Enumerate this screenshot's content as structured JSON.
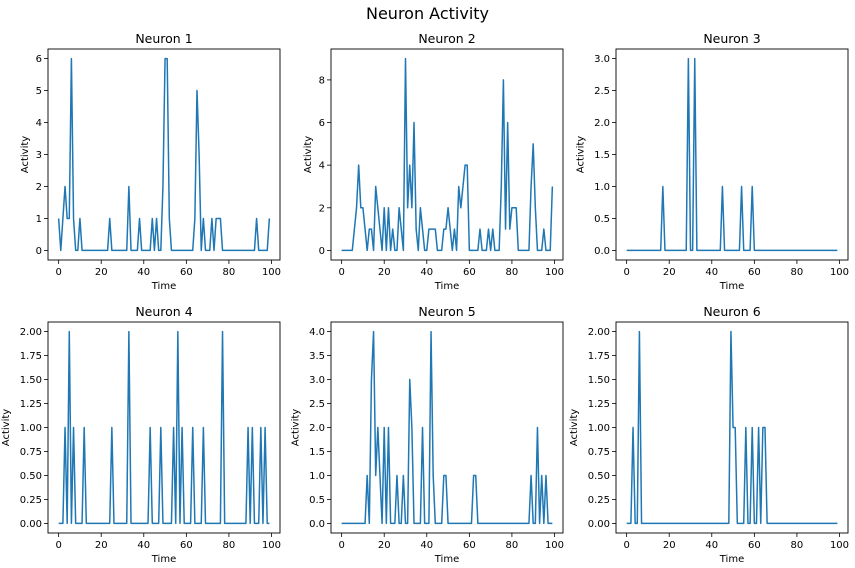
{
  "suptitle": "Neuron Activity",
  "colors": {
    "series": "#1f77b4"
  },
  "chart_data": [
    {
      "type": "line",
      "title": "Neuron 1",
      "xlabel": "Time",
      "ylabel": "Activity",
      "xlim": [
        -5,
        104
      ],
      "ylim": [
        -0.3,
        6.3
      ],
      "grid": false,
      "xticks": [
        0,
        20,
        40,
        60,
        80,
        100
      ],
      "yticks": [
        0,
        1,
        2,
        3,
        4,
        5,
        6
      ],
      "x": [
        0,
        1,
        2,
        3,
        4,
        5,
        6,
        7,
        8,
        9,
        10,
        11,
        12,
        13,
        14,
        15,
        16,
        17,
        18,
        19,
        20,
        21,
        22,
        23,
        24,
        25,
        26,
        27,
        28,
        29,
        30,
        31,
        32,
        33,
        34,
        35,
        36,
        37,
        38,
        39,
        40,
        41,
        42,
        43,
        44,
        45,
        46,
        47,
        48,
        49,
        50,
        51,
        52,
        53,
        54,
        55,
        56,
        57,
        58,
        59,
        60,
        61,
        62,
        63,
        64,
        65,
        66,
        67,
        68,
        69,
        70,
        71,
        72,
        73,
        74,
        75,
        76,
        77,
        78,
        79,
        80,
        81,
        82,
        83,
        84,
        85,
        86,
        87,
        88,
        89,
        90,
        91,
        92,
        93,
        94,
        95,
        96,
        97,
        98,
        99
      ],
      "y": [
        1,
        0,
        1,
        2,
        1,
        1,
        6,
        1,
        0,
        0,
        1,
        0,
        0,
        0,
        0,
        0,
        0,
        0,
        0,
        0,
        0,
        0,
        0,
        0,
        1,
        0,
        0,
        0,
        0,
        0,
        0,
        0,
        0,
        2,
        0,
        0,
        0,
        0,
        1,
        0,
        0,
        0,
        0,
        0,
        1,
        0,
        1,
        0,
        0,
        2,
        6,
        6,
        1,
        0,
        0,
        0,
        0,
        0,
        0,
        0,
        0,
        0,
        0,
        0,
        1,
        5,
        3,
        0,
        1,
        0,
        0,
        0,
        1,
        0,
        1,
        1,
        1,
        0,
        0,
        0,
        0,
        0,
        0,
        0,
        0,
        0,
        0,
        0,
        0,
        0,
        0,
        0,
        0,
        1,
        0,
        0,
        0,
        0,
        0,
        1
      ]
    },
    {
      "type": "line",
      "title": "Neuron 2",
      "xlabel": "Time",
      "ylabel": "Activity",
      "xlim": [
        -5,
        104
      ],
      "ylim": [
        -0.45,
        9.45
      ],
      "grid": false,
      "xticks": [
        0,
        20,
        40,
        60,
        80,
        100
      ],
      "yticks": [
        0,
        2,
        4,
        6,
        8
      ],
      "x": [
        0,
        1,
        2,
        3,
        4,
        5,
        6,
        7,
        8,
        9,
        10,
        11,
        12,
        13,
        14,
        15,
        16,
        17,
        18,
        19,
        20,
        21,
        22,
        23,
        24,
        25,
        26,
        27,
        28,
        29,
        30,
        31,
        32,
        33,
        34,
        35,
        36,
        37,
        38,
        39,
        40,
        41,
        42,
        43,
        44,
        45,
        46,
        47,
        48,
        49,
        50,
        51,
        52,
        53,
        54,
        55,
        56,
        57,
        58,
        59,
        60,
        61,
        62,
        63,
        64,
        65,
        66,
        67,
        68,
        69,
        70,
        71,
        72,
        73,
        74,
        75,
        76,
        77,
        78,
        79,
        80,
        81,
        82,
        83,
        84,
        85,
        86,
        87,
        88,
        89,
        90,
        91,
        92,
        93,
        94,
        95,
        96,
        97,
        98,
        99
      ],
      "y": [
        0,
        0,
        0,
        0,
        0,
        0,
        1,
        2,
        4,
        2,
        2,
        1,
        0,
        1,
        1,
        0,
        3,
        2,
        1,
        0,
        2,
        0,
        2,
        0,
        1,
        0,
        0,
        2,
        1,
        0,
        9,
        2,
        4,
        2,
        6,
        1,
        0,
        2,
        1,
        0,
        0,
        1,
        1,
        1,
        1,
        0,
        0,
        0,
        1,
        1,
        2,
        1,
        0,
        1,
        0,
        3,
        2,
        3,
        4,
        4,
        0,
        0,
        0,
        0,
        0,
        1,
        0,
        0,
        0,
        1,
        0,
        1,
        0,
        0,
        0,
        3,
        8,
        1,
        6,
        1,
        2,
        2,
        2,
        0,
        0,
        0,
        0,
        0,
        0,
        3,
        5,
        2,
        0,
        0,
        0,
        1,
        0,
        0,
        0,
        3
      ]
    },
    {
      "type": "line",
      "title": "Neuron 3",
      "xlabel": "Time",
      "ylabel": "Activity",
      "xlim": [
        -5,
        104
      ],
      "ylim": [
        -0.15,
        3.15
      ],
      "grid": false,
      "xticks": [
        0,
        20,
        40,
        60,
        80,
        100
      ],
      "yticks": [
        0.0,
        0.5,
        1.0,
        1.5,
        2.0,
        2.5,
        3.0
      ],
      "x": [
        0,
        1,
        2,
        3,
        4,
        5,
        6,
        7,
        8,
        9,
        10,
        11,
        12,
        13,
        14,
        15,
        16,
        17,
        18,
        19,
        20,
        21,
        22,
        23,
        24,
        25,
        26,
        27,
        28,
        29,
        30,
        31,
        32,
        33,
        34,
        35,
        36,
        37,
        38,
        39,
        40,
        41,
        42,
        43,
        44,
        45,
        46,
        47,
        48,
        49,
        50,
        51,
        52,
        53,
        54,
        55,
        56,
        57,
        58,
        59,
        60,
        61,
        62,
        63,
        64,
        65,
        66,
        67,
        68,
        69,
        70,
        71,
        72,
        73,
        74,
        75,
        76,
        77,
        78,
        79,
        80,
        81,
        82,
        83,
        84,
        85,
        86,
        87,
        88,
        89,
        90,
        91,
        92,
        93,
        94,
        95,
        96,
        97,
        98,
        99
      ],
      "y": [
        0,
        0,
        0,
        0,
        0,
        0,
        0,
        0,
        0,
        0,
        0,
        0,
        0,
        0,
        0,
        0,
        0,
        1,
        0,
        0,
        0,
        0,
        0,
        0,
        0,
        0,
        0,
        0,
        0,
        3,
        0,
        0,
        3,
        0,
        0,
        0,
        0,
        0,
        0,
        0,
        0,
        0,
        0,
        0,
        0,
        1,
        0,
        0,
        0,
        0,
        0,
        0,
        0,
        0,
        1,
        0,
        0,
        0,
        0,
        1,
        0,
        0,
        0,
        0,
        0,
        0,
        0,
        0,
        0,
        0,
        0,
        0,
        0,
        0,
        0,
        0,
        0,
        0,
        0,
        0,
        0,
        0,
        0,
        0,
        0,
        0,
        0,
        0,
        0,
        0,
        0,
        0,
        0,
        0,
        0,
        0,
        0,
        0,
        0,
        0
      ]
    },
    {
      "type": "line",
      "title": "Neuron 4",
      "xlabel": "Time",
      "ylabel": "Activity",
      "xlim": [
        -5,
        104
      ],
      "ylim": [
        -0.1,
        2.1
      ],
      "grid": false,
      "xticks": [
        0,
        20,
        40,
        60,
        80,
        100
      ],
      "yticks": [
        0.0,
        0.25,
        0.5,
        0.75,
        1.0,
        1.25,
        1.5,
        1.75,
        2.0
      ],
      "ytick_labels": [
        "0.00",
        "0.25",
        "0.50",
        "0.75",
        "1.00",
        "1.25",
        "1.50",
        "1.75",
        "2.00"
      ],
      "x": [
        0,
        1,
        2,
        3,
        4,
        5,
        6,
        7,
        8,
        9,
        10,
        11,
        12,
        13,
        14,
        15,
        16,
        17,
        18,
        19,
        20,
        21,
        22,
        23,
        24,
        25,
        26,
        27,
        28,
        29,
        30,
        31,
        32,
        33,
        34,
        35,
        36,
        37,
        38,
        39,
        40,
        41,
        42,
        43,
        44,
        45,
        46,
        47,
        48,
        49,
        50,
        51,
        52,
        53,
        54,
        55,
        56,
        57,
        58,
        59,
        60,
        61,
        62,
        63,
        64,
        65,
        66,
        67,
        68,
        69,
        70,
        71,
        72,
        73,
        74,
        75,
        76,
        77,
        78,
        79,
        80,
        81,
        82,
        83,
        84,
        85,
        86,
        87,
        88,
        89,
        90,
        91,
        92,
        93,
        94,
        95,
        96,
        97,
        98,
        99
      ],
      "y": [
        0,
        0,
        0,
        1,
        0,
        2,
        0,
        1,
        0,
        0,
        0,
        0,
        1,
        0,
        0,
        0,
        0,
        0,
        0,
        0,
        0,
        0,
        0,
        0,
        0,
        1,
        0,
        0,
        0,
        0,
        0,
        0,
        0,
        2,
        0,
        0,
        0,
        0,
        0,
        0,
        0,
        0,
        0,
        1,
        0,
        0,
        0,
        0,
        1,
        0,
        0,
        0,
        0,
        0,
        1,
        0,
        2,
        0,
        1,
        0,
        0,
        0,
        0,
        1,
        0,
        0,
        0,
        0,
        1,
        0,
        0,
        0,
        0,
        0,
        0,
        0,
        0,
        2,
        0,
        0,
        0,
        0,
        0,
        0,
        0,
        0,
        0,
        0,
        0,
        1,
        0,
        1,
        0,
        0,
        0,
        1,
        0,
        1,
        0,
        0
      ]
    },
    {
      "type": "line",
      "title": "Neuron 5",
      "xlabel": "Time",
      "ylabel": "Activity",
      "xlim": [
        -5,
        104
      ],
      "ylim": [
        -0.2,
        4.2
      ],
      "grid": false,
      "xticks": [
        0,
        20,
        40,
        60,
        80,
        100
      ],
      "yticks": [
        0.0,
        0.5,
        1.0,
        1.5,
        2.0,
        2.5,
        3.0,
        3.5,
        4.0
      ],
      "x": [
        0,
        1,
        2,
        3,
        4,
        5,
        6,
        7,
        8,
        9,
        10,
        11,
        12,
        13,
        14,
        15,
        16,
        17,
        18,
        19,
        20,
        21,
        22,
        23,
        24,
        25,
        26,
        27,
        28,
        29,
        30,
        31,
        32,
        33,
        34,
        35,
        36,
        37,
        38,
        39,
        40,
        41,
        42,
        43,
        44,
        45,
        46,
        47,
        48,
        49,
        50,
        51,
        52,
        53,
        54,
        55,
        56,
        57,
        58,
        59,
        60,
        61,
        62,
        63,
        64,
        65,
        66,
        67,
        68,
        69,
        70,
        71,
        72,
        73,
        74,
        75,
        76,
        77,
        78,
        79,
        80,
        81,
        82,
        83,
        84,
        85,
        86,
        87,
        88,
        89,
        90,
        91,
        92,
        93,
        94,
        95,
        96,
        97,
        98,
        99
      ],
      "y": [
        0,
        0,
        0,
        0,
        0,
        0,
        0,
        0,
        0,
        0,
        0,
        0,
        1,
        0,
        3,
        4,
        1,
        2,
        1,
        0,
        2,
        0,
        2,
        0,
        0,
        0,
        1,
        0,
        0,
        1,
        0,
        0,
        3,
        2,
        0,
        0,
        0,
        0,
        2,
        0,
        0,
        0,
        4,
        1,
        0,
        0,
        0,
        0,
        1,
        1,
        0,
        0,
        0,
        0,
        0,
        0,
        0,
        0,
        0,
        0,
        0,
        0,
        1,
        1,
        0,
        0,
        0,
        0,
        0,
        0,
        0,
        0,
        0,
        0,
        0,
        0,
        0,
        0,
        0,
        0,
        0,
        0,
        0,
        0,
        0,
        0,
        0,
        0,
        0,
        1,
        0,
        0,
        2,
        0,
        1,
        0,
        1,
        0,
        0,
        0
      ]
    },
    {
      "type": "line",
      "title": "Neuron 6",
      "xlabel": "Time",
      "ylabel": "Activity",
      "xlim": [
        -5,
        104
      ],
      "ylim": [
        -0.1,
        2.1
      ],
      "grid": false,
      "xticks": [
        0,
        20,
        40,
        60,
        80,
        100
      ],
      "yticks": [
        0.0,
        0.25,
        0.5,
        0.75,
        1.0,
        1.25,
        1.5,
        1.75,
        2.0
      ],
      "ytick_labels": [
        "0.00",
        "0.25",
        "0.50",
        "0.75",
        "1.00",
        "1.25",
        "1.50",
        "1.75",
        "2.00"
      ],
      "x": [
        0,
        1,
        2,
        3,
        4,
        5,
        6,
        7,
        8,
        9,
        10,
        11,
        12,
        13,
        14,
        15,
        16,
        17,
        18,
        19,
        20,
        21,
        22,
        23,
        24,
        25,
        26,
        27,
        28,
        29,
        30,
        31,
        32,
        33,
        34,
        35,
        36,
        37,
        38,
        39,
        40,
        41,
        42,
        43,
        44,
        45,
        46,
        47,
        48,
        49,
        50,
        51,
        52,
        53,
        54,
        55,
        56,
        57,
        58,
        59,
        60,
        61,
        62,
        63,
        64,
        65,
        66,
        67,
        68,
        69,
        70,
        71,
        72,
        73,
        74,
        75,
        76,
        77,
        78,
        79,
        80,
        81,
        82,
        83,
        84,
        85,
        86,
        87,
        88,
        89,
        90,
        91,
        92,
        93,
        94,
        95,
        96,
        97,
        98,
        99
      ],
      "y": [
        0,
        0,
        0,
        1,
        0,
        0,
        2,
        0,
        0,
        0,
        0,
        0,
        0,
        0,
        0,
        0,
        0,
        0,
        0,
        0,
        0,
        0,
        0,
        0,
        0,
        0,
        0,
        0,
        0,
        0,
        0,
        0,
        0,
        0,
        0,
        0,
        0,
        0,
        0,
        0,
        0,
        0,
        0,
        0,
        0,
        0,
        0,
        0,
        0,
        2,
        1,
        1,
        0,
        0,
        0,
        0,
        1,
        0,
        0,
        1,
        0,
        0,
        1,
        0,
        1,
        1,
        0,
        0,
        0,
        0,
        0,
        0,
        0,
        0,
        0,
        0,
        0,
        0,
        0,
        0,
        0,
        0,
        0,
        0,
        0,
        0,
        0,
        0,
        0,
        0,
        0,
        0,
        0,
        0,
        0,
        0,
        0,
        0,
        0,
        0
      ]
    }
  ]
}
